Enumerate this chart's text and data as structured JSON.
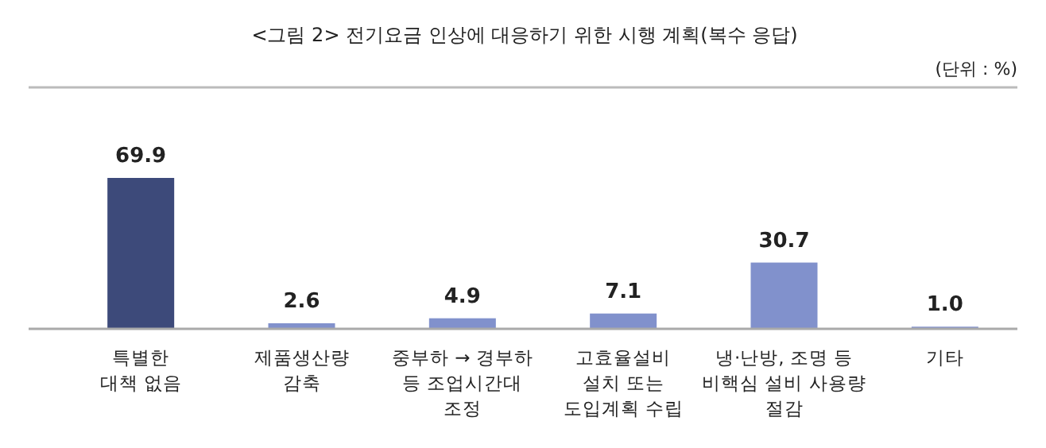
{
  "chart_data": {
    "type": "bar",
    "title": "<그림 2> 전기요금 인상에 대응하기 위한 시행 계획(복수 응답)",
    "annotations": [
      "(단위 : %)"
    ],
    "categories": [
      "특별한\n대책 없음",
      "제품생산량\n감축",
      "중부하 → 경부하\n등 조업시간대\n조정",
      "고효율설비\n설치 또는\n도입계획 수립",
      "냉·난방, 조명 등\n비핵심 설비 사용량\n절감",
      "기타"
    ],
    "values": [
      69.9,
      2.6,
      4.9,
      7.1,
      30.7,
      1.0
    ],
    "value_labels": [
      "69.9",
      "2.6",
      "4.9",
      "7.1",
      "30.7",
      "1.0"
    ],
    "colors": [
      "#3d4a7a",
      "#8191cc",
      "#8191cc",
      "#8191cc",
      "#8191cc",
      "#8191cc"
    ],
    "grid": false
  }
}
